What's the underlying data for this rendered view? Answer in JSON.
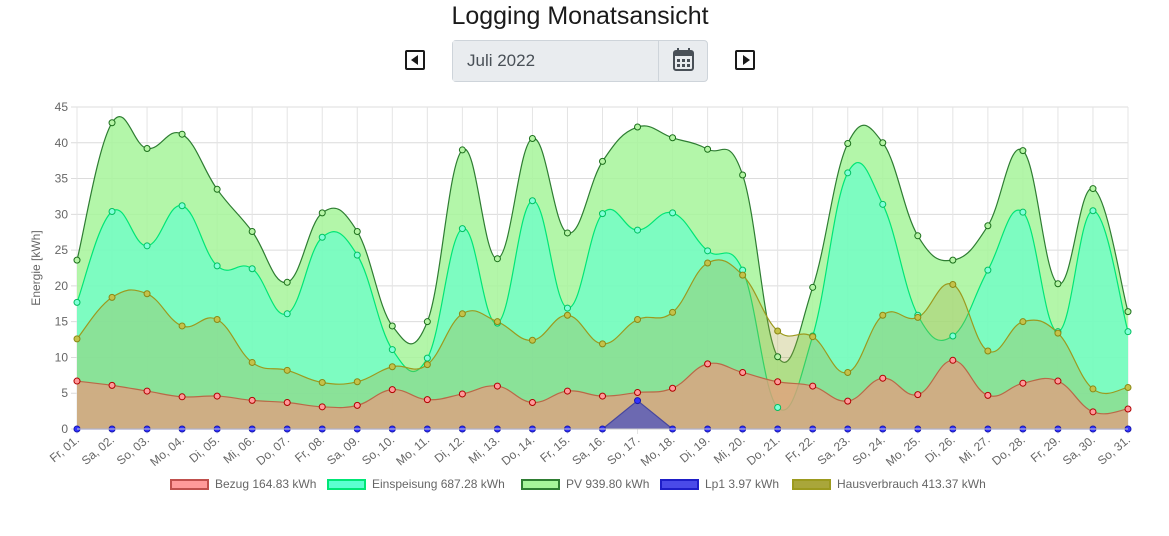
{
  "page": {
    "title": "Logging Monatsansicht",
    "month_value": "Juli 2022"
  },
  "chart_data": {
    "type": "area",
    "ylabel": "Energie [kWh]",
    "ylim": [
      0,
      45
    ],
    "yticks": [
      0,
      5,
      10,
      15,
      20,
      25,
      30,
      35,
      40,
      45
    ],
    "grid": true,
    "legend_position": "bottom",
    "categories": [
      "Fr, 01.",
      "Sa, 02.",
      "So, 03.",
      "Mo, 04.",
      "Di, 05.",
      "Mi, 06.",
      "Do, 07.",
      "Fr, 08.",
      "Sa, 09.",
      "So, 10.",
      "Mo, 11.",
      "Di, 12.",
      "Mi, 13.",
      "Do, 14.",
      "Fr, 15.",
      "Sa, 16.",
      "So, 17.",
      "Mo, 18.",
      "Di, 19.",
      "Mi, 20.",
      "Do, 21.",
      "Fr, 22.",
      "Sa, 23.",
      "So, 24.",
      "Mo, 25.",
      "Di, 26.",
      "Mi, 27.",
      "Do, 28.",
      "Fr, 29.",
      "Sa, 30.",
      "So, 31."
    ],
    "series": [
      {
        "name": "Bezug",
        "legend_label": "Bezug 164.83 kWh",
        "line_color": "#c0504d",
        "fill_color": "#ff9a9a",
        "fill_opacity": 0.75,
        "point_fill": "#ff9a9a",
        "point_stroke": "#b00000",
        "tension": 0.4,
        "values": [
          6.7,
          6.1,
          5.3,
          4.5,
          4.6,
          4.0,
          3.7,
          3.1,
          3.3,
          5.5,
          4.1,
          4.9,
          6.0,
          3.7,
          5.3,
          4.6,
          5.1,
          5.7,
          9.1,
          7.9,
          6.6,
          6.0,
          3.9,
          7.1,
          4.8,
          9.6,
          4.7,
          6.4,
          6.7,
          2.4,
          2.8
        ]
      },
      {
        "name": "Einspeisung",
        "legend_label": "Einspeisung 687.28 kWh",
        "line_color": "#00e676",
        "fill_color": "#5cffd0",
        "fill_opacity": 0.62,
        "point_fill": "#80ffd8",
        "point_stroke": "#00c060",
        "tension": 0.4,
        "values": [
          17.7,
          30.4,
          25.6,
          31.2,
          22.8,
          22.4,
          16.1,
          26.8,
          24.3,
          11.1,
          9.9,
          28.0,
          14.8,
          31.9,
          16.9,
          30.1,
          27.8,
          30.2,
          24.9,
          22.2,
          3.0,
          13.0,
          35.8,
          31.4,
          15.9,
          13.0,
          22.2,
          30.3,
          13.6,
          30.5,
          13.6
        ]
      },
      {
        "name": "PV",
        "legend_label": "PV 939.80 kWh",
        "line_color": "#2e7d32",
        "fill_color": "#a6f59a",
        "fill_opacity": 0.85,
        "point_fill": "#b5f5a5",
        "point_stroke": "#1b6f1b",
        "tension": 0.4,
        "values": [
          23.6,
          42.8,
          39.2,
          41.2,
          33.5,
          27.6,
          20.5,
          30.2,
          27.6,
          14.4,
          15.0,
          39.0,
          23.8,
          40.6,
          27.4,
          37.4,
          42.2,
          40.7,
          39.1,
          35.5,
          10.1,
          19.8,
          39.9,
          40.0,
          27.0,
          23.6,
          28.4,
          38.9,
          20.3,
          33.6,
          16.4
        ]
      },
      {
        "name": "Lp1",
        "legend_label": "Lp1 3.97 kWh",
        "line_color": "#1e1ec8",
        "fill_color": "#4a4ae8",
        "fill_opacity": 0.95,
        "point_fill": "#3333ff",
        "point_stroke": "#1818b0",
        "tension": 0,
        "values": [
          0,
          0,
          0,
          0,
          0,
          0,
          0,
          0,
          0,
          0,
          0,
          0,
          0,
          0,
          0,
          0,
          3.97,
          0,
          0,
          0,
          0,
          0,
          0,
          0,
          0,
          0,
          0,
          0,
          0,
          0,
          0
        ]
      },
      {
        "name": "Hausverbrauch",
        "legend_label": "Hausverbrauch 413.37 kWh",
        "line_color": "#9c9a1e",
        "fill_color": "#a9a63a",
        "fill_opacity": 0.3,
        "point_fill": "#c4c24a",
        "point_stroke": "#8a8814",
        "tension": 0.4,
        "values": [
          12.6,
          18.4,
          18.9,
          14.4,
          15.3,
          9.3,
          8.2,
          6.5,
          6.6,
          8.7,
          9.0,
          16.1,
          15.0,
          12.4,
          15.9,
          11.9,
          15.3,
          16.3,
          23.2,
          21.5,
          13.7,
          12.9,
          7.9,
          15.9,
          15.6,
          20.2,
          10.9,
          15.0,
          13.4,
          5.6,
          5.8
        ]
      }
    ]
  }
}
